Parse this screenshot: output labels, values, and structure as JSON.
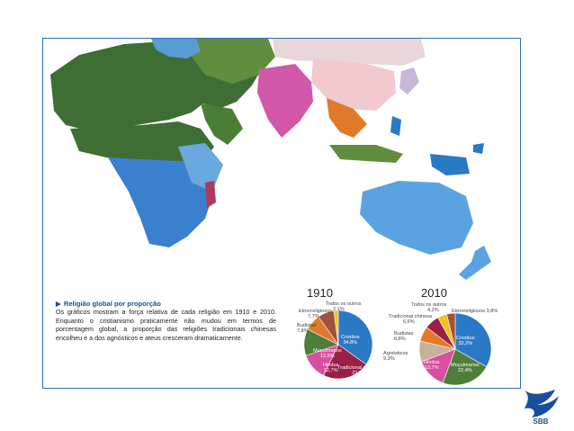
{
  "caption": {
    "title": "Religião global por proporção",
    "body": "Os gráficos mostram a força relativa de cada religião em 1910 e 2010. Enquanto o cristianismo praticamente não mudou em termos de porcentagem global, a proporção das religiões tradicionais chinesas encolheu e a dos agnósticos e ateus cresceram dramaticamente."
  },
  "colors": {
    "cristaos": "#2a79c4",
    "muculmanos": "#4f7d3a",
    "hindus": "#d94fa0",
    "tradicional_chinesa": "#9b1f45",
    "budistas": "#e07a2a",
    "etnorreligiosos": "#a0523a",
    "agnosticos": "#c9b09a",
    "todos_outros": "#f2c21b"
  },
  "logo": {
    "text": "SBB",
    "color": "#1b4f9c"
  },
  "chart_data": [
    {
      "type": "pie",
      "title": "1910",
      "slices": [
        {
          "label": "Cristãos",
          "value": 34.8,
          "display": "34,8%",
          "color": "#2a79c4"
        },
        {
          "label": "Tradicional chinesa",
          "value": 22.2,
          "display": "22,2%",
          "color": "#9b1f45"
        },
        {
          "label": "Hindus",
          "value": 12.7,
          "display": "12,7%",
          "color": "#d94fa0"
        },
        {
          "label": "Muçulmanos",
          "value": 12.6,
          "display": "12,6%",
          "color": "#4f7d3a"
        },
        {
          "label": "Budistas",
          "value": 7.8,
          "display": "7,8%",
          "color": "#e07a2a"
        },
        {
          "label": "Etnorreligiosos",
          "value": 7.7,
          "display": "7,7%",
          "color": "#a0523a"
        },
        {
          "label": "Todos os outros",
          "value": 2.1,
          "display": "2,1%",
          "color": "#f2c21b"
        }
      ]
    },
    {
      "type": "pie",
      "title": "2010",
      "slices": [
        {
          "label": "Cristãos",
          "value": 33.2,
          "display": "33,2%",
          "color": "#2a79c4"
        },
        {
          "label": "Muçulmanos",
          "value": 22.4,
          "display": "22,4%",
          "color": "#4f7d3a"
        },
        {
          "label": "Hindus",
          "value": 13.7,
          "display": "13,7%",
          "color": "#d94fa0"
        },
        {
          "label": "Agnósticos",
          "value": 9.3,
          "display": "9,3%",
          "color": "#c9b09a"
        },
        {
          "label": "Budistas",
          "value": 6.8,
          "display": "6,8%",
          "color": "#e07a2a"
        },
        {
          "label": "Tradicional chinesa",
          "value": 6.6,
          "display": "6,6%",
          "color": "#9b1f45"
        },
        {
          "label": "Todos os outros",
          "value": 4.2,
          "display": "4,2%",
          "color": "#f2c21b"
        },
        {
          "label": "Etnorreligiosos",
          "value": 3.8,
          "display": "3,8%",
          "color": "#a0523a"
        }
      ]
    }
  ]
}
